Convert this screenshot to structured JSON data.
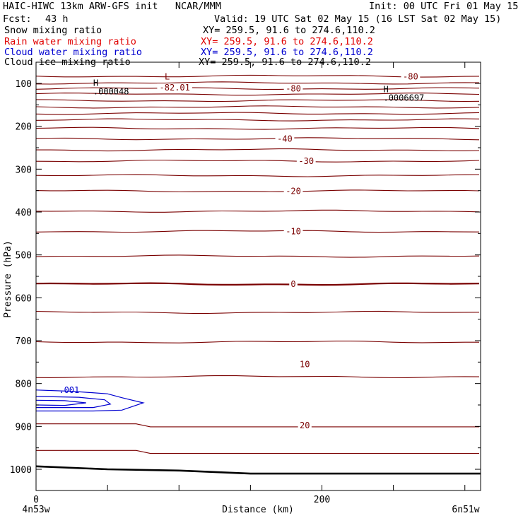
{
  "header": {
    "title_left": "HAIC-HIWC 13km ARW-GFS init   NCAR/MMM",
    "init": "Init: 00 UTC Fri 01 May 15",
    "fcst_label": "Fcst:",
    "fcst_value": "43 h",
    "valid": "Valid: 19 UTC Sat 02 May 15 (16 LST Sat 02 May 15)"
  },
  "fields": [
    {
      "name": "Snow mixing ratio",
      "xy": "XY= 259.5, 91.6 to 274.6,110.2",
      "color": "#000000"
    },
    {
      "name": "Rain water mixing ratio",
      "xy": "XY= 259.5, 91.6 to 274.6,110.2",
      "color": "#e00000"
    },
    {
      "name": "Cloud water mixing ratio",
      "xy": "XY= 259.5, 91.6 to 274.6,110.2",
      "color": "#0000d0"
    },
    {
      "name": "Cloud ice mixing ratio",
      "xy": "XY= 259.5, 91.6 to 274.6,110.2",
      "color": "#000000"
    }
  ],
  "colors": {
    "temperature_contour": "#7a0000",
    "cloud_water_contour": "#0000d0",
    "ground": "#000000"
  },
  "chart_data": {
    "type": "cross-section contour",
    "ylabel": "Pressure (hPa)",
    "xlabel": "Distance (km)",
    "x_endpoints": [
      "4n53w",
      "6n51w"
    ],
    "xlim": [
      0,
      311
    ],
    "x_ticks": [
      0,
      200
    ],
    "x_minor_ticks": [
      0,
      50,
      100,
      150,
      200,
      250,
      300
    ],
    "ylim": [
      1050,
      50
    ],
    "y_ticks": [
      100,
      200,
      300,
      400,
      500,
      600,
      700,
      800,
      900,
      1000
    ],
    "grid": false,
    "temperature_contour_labels": [
      {
        "label": "-80",
        "x": 262,
        "p": 84
      },
      {
        "label": "-80",
        "x": 180,
        "p": 112
      },
      {
        "label": "-82.01",
        "x": 97,
        "p": 110
      },
      {
        "label": "-40",
        "x": 174,
        "p": 229
      },
      {
        "label": "-30",
        "x": 189,
        "p": 281
      },
      {
        "label": "-20",
        "x": 180,
        "p": 351
      },
      {
        "label": "-10",
        "x": 180,
        "p": 445
      },
      {
        "label": "0",
        "x": 180,
        "p": 568
      },
      {
        "label": "10",
        "x": 188,
        "p": 755
      },
      {
        "label": "20",
        "x": 188,
        "p": 898
      }
    ],
    "extrema_labels": [
      {
        "marker": "H",
        "value": ".000048",
        "x": 40,
        "p": 106
      },
      {
        "marker": "H",
        "value": ".0006697",
        "x": 243,
        "p": 121
      },
      {
        "marker": "L",
        "value": "",
        "x": 90,
        "p": 91
      }
    ],
    "cloud_water_label": {
      "label": ".001",
      "x": 16,
      "p": 815
    },
    "temperature_isotherm_pressures": [
      83,
      99,
      112,
      125,
      140,
      155,
      170,
      185,
      205,
      229,
      255,
      281,
      315,
      351,
      398,
      445,
      503,
      568,
      634,
      703,
      784,
      898,
      960
    ],
    "ground_pressure": {
      "x": [
        0,
        50,
        100,
        150,
        200,
        250,
        311
      ],
      "p": [
        993,
        1000,
        1003,
        1010,
        1010,
        1010,
        1010
      ]
    }
  }
}
